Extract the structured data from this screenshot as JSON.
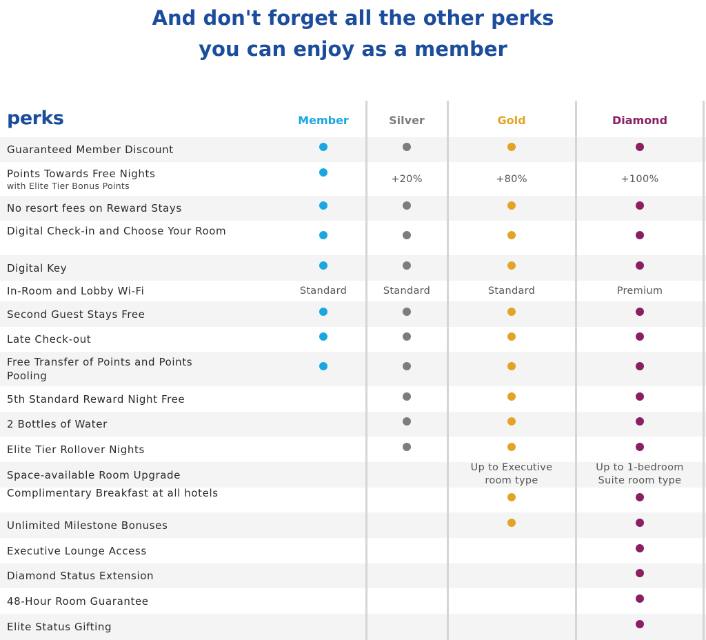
{
  "headline": {
    "line1": "And don't forget all the other perks",
    "line2": "you can enjoy as a member"
  },
  "table": {
    "title": "perks",
    "tiers": [
      {
        "name": "Member",
        "color": "#1aa7e0"
      },
      {
        "name": "Silver",
        "color": "#7d7d7d"
      },
      {
        "name": "Gold",
        "color": "#e3a326"
      },
      {
        "name": "Diamond",
        "color": "#8a1f62"
      }
    ],
    "rows": [
      {
        "label": "Guaranteed Member Discount",
        "sub": "",
        "cells": [
          "dot",
          "dot",
          "dot",
          "dot"
        ]
      },
      {
        "label": "Points Towards Free Nights",
        "sub": "with Elite Tier Bonus Points",
        "cells": [
          "dot",
          "+20%",
          "+80%",
          "+100%"
        ]
      },
      {
        "label": "No resort fees on Reward Stays",
        "sub": "",
        "cells": [
          "dot",
          "dot",
          "dot",
          "dot"
        ]
      },
      {
        "label": "Digital Check-in and Choose Your Room",
        "sub": "",
        "cells": [
          "dot",
          "dot",
          "dot",
          "dot"
        ]
      },
      {
        "label": "Digital Key",
        "sub": "",
        "cells": [
          "dot",
          "dot",
          "dot",
          "dot"
        ]
      },
      {
        "label": "In-Room and Lobby Wi-Fi",
        "sub": "",
        "cells": [
          "Standard",
          "Standard",
          "Standard",
          "Premium"
        ]
      },
      {
        "label": "Second Guest Stays Free",
        "sub": "",
        "cells": [
          "dot",
          "dot",
          "dot",
          "dot"
        ]
      },
      {
        "label": "Late Check-out",
        "sub": "",
        "cells": [
          "dot",
          "dot",
          "dot",
          "dot"
        ]
      },
      {
        "label": "Free Transfer of Points and Points Pooling",
        "sub": "",
        "cells": [
          "dot",
          "dot",
          "dot",
          "dot"
        ]
      },
      {
        "label": "5th Standard Reward Night Free",
        "sub": "",
        "cells": [
          "",
          "dot",
          "dot",
          "dot"
        ]
      },
      {
        "label": "2 Bottles of Water",
        "sub": "",
        "cells": [
          "",
          "dot",
          "dot",
          "dot"
        ]
      },
      {
        "label": "Elite Tier Rollover Nights",
        "sub": "",
        "cells": [
          "",
          "dot",
          "dot",
          "dot"
        ]
      },
      {
        "label": "Space-available Room Upgrade",
        "sub": "",
        "cells": [
          "",
          "",
          "Up to Executive room type",
          "Up to 1-bedroom Suite room type"
        ]
      },
      {
        "label": "Complimentary Breakfast at all hotels",
        "sub": "",
        "cells": [
          "",
          "",
          "dot",
          "dot"
        ]
      },
      {
        "label": "Unlimited Milestone Bonuses",
        "sub": "",
        "cells": [
          "",
          "",
          "dot",
          "dot"
        ]
      },
      {
        "label": "Executive Lounge Access",
        "sub": "",
        "cells": [
          "",
          "",
          "",
          "dot"
        ]
      },
      {
        "label": "Diamond Status Extension",
        "sub": "",
        "cells": [
          "",
          "",
          "",
          "dot"
        ]
      },
      {
        "label": "48-Hour Room Guarantee",
        "sub": "",
        "cells": [
          "",
          "",
          "",
          "dot"
        ]
      },
      {
        "label": "Elite Status Gifting",
        "sub": "",
        "cells": [
          "",
          "",
          "",
          "dot"
        ]
      }
    ]
  }
}
